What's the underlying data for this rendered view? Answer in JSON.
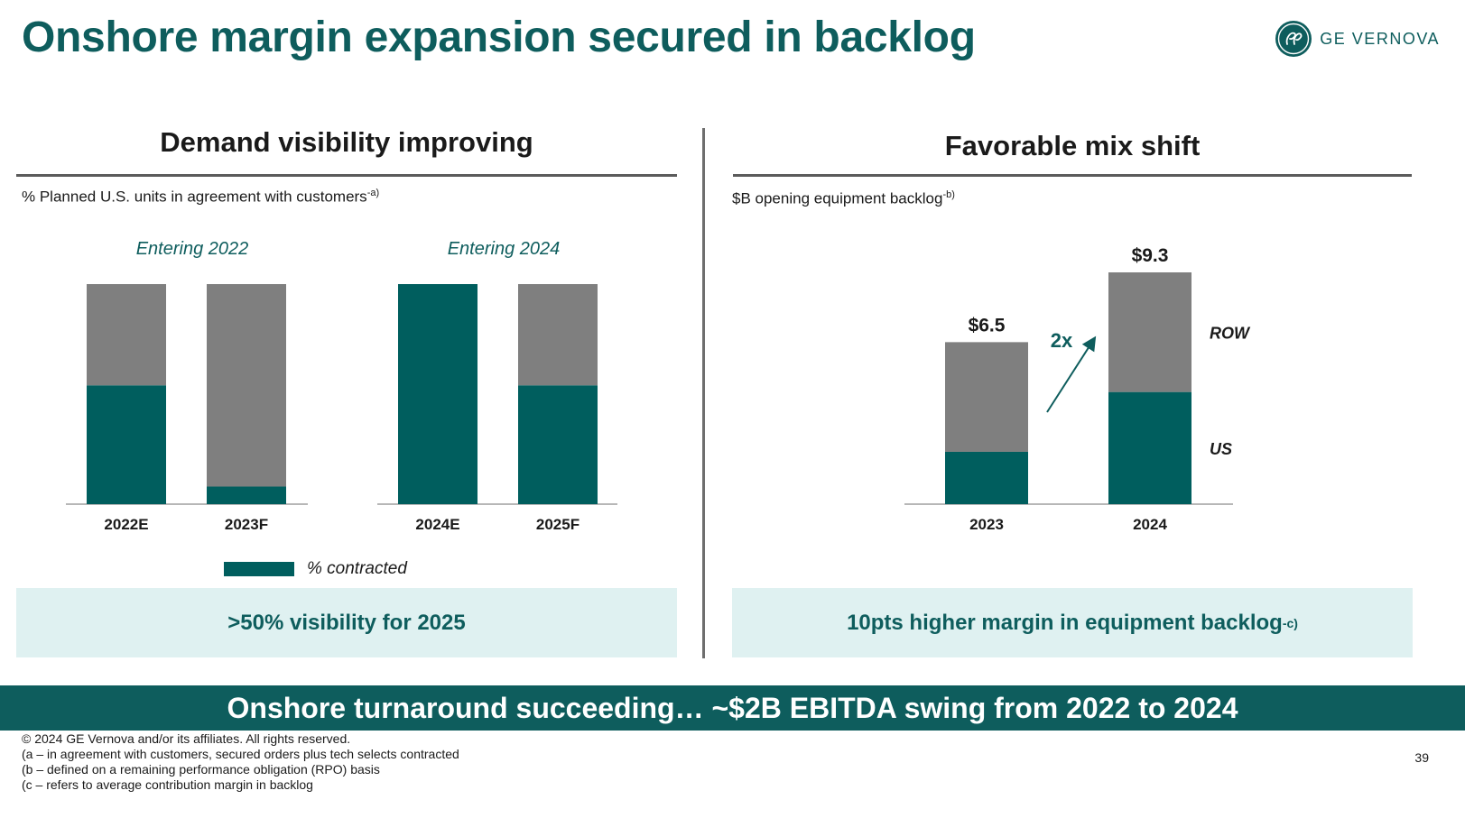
{
  "title": "Onshore margin expansion secured in backlog",
  "logo": {
    "text": "GE VERNOVA",
    "icon": "ge-monogram-icon"
  },
  "colors": {
    "accent": "#0e5d5d",
    "contracted": "#005e5e",
    "remainder": "#7f7f7f",
    "callout_bg": "#dff1f1"
  },
  "left_panel": {
    "title": "Demand visibility improving",
    "subtitle": "% Planned U.S. units in agreement with customers",
    "subtitle_note": "-a)",
    "callout": ">50% visibility for 2025",
    "legend_label": "% contracted"
  },
  "right_panel": {
    "title": "Favorable mix shift",
    "subtitle": "$B opening equipment backlog",
    "subtitle_note": "-b)",
    "callout": "10pts higher margin in equipment backlog",
    "callout_note": "-c)",
    "growth_label": "2x"
  },
  "banner": "Onshore turnaround succeeding… ~$2B EBITDA swing from 2022 to 2024",
  "footer": {
    "copyright": "© 2024 GE Vernova and/or its affiliates. All rights reserved.",
    "note_a": "(a – in agreement with customers, secured orders plus tech selects contracted",
    "note_b": "(b – defined on a remaining performance obligation (RPO) basis",
    "note_c": "(c – refers to average contribution margin in backlog"
  },
  "page_number": "39",
  "chart_data": [
    {
      "type": "bar",
      "stacked": true,
      "groups": [
        {
          "label": "Entering 2022",
          "categories": [
            "2022E",
            "2023F"
          ]
        },
        {
          "label": "Entering 2024",
          "categories": [
            "2024E",
            "2025F"
          ]
        }
      ],
      "categories": [
        "2022E",
        "2023F",
        "2024E",
        "2025F"
      ],
      "series": [
        {
          "name": "% contracted",
          "values": [
            54,
            8,
            100,
            54
          ]
        },
        {
          "values": [
            46,
            92,
            0,
            46
          ]
        }
      ],
      "ylim": [
        0,
        100
      ]
    },
    {
      "type": "bar",
      "stacked": true,
      "categories": [
        "2023",
        "2024"
      ],
      "series": [
        {
          "name": "US",
          "values": [
            2.1,
            4.5
          ]
        },
        {
          "name": "ROW",
          "values": [
            4.4,
            4.8
          ]
        }
      ],
      "totals": [
        "$6.5",
        "$9.3"
      ],
      "ylim": [
        0,
        9.3
      ]
    }
  ]
}
